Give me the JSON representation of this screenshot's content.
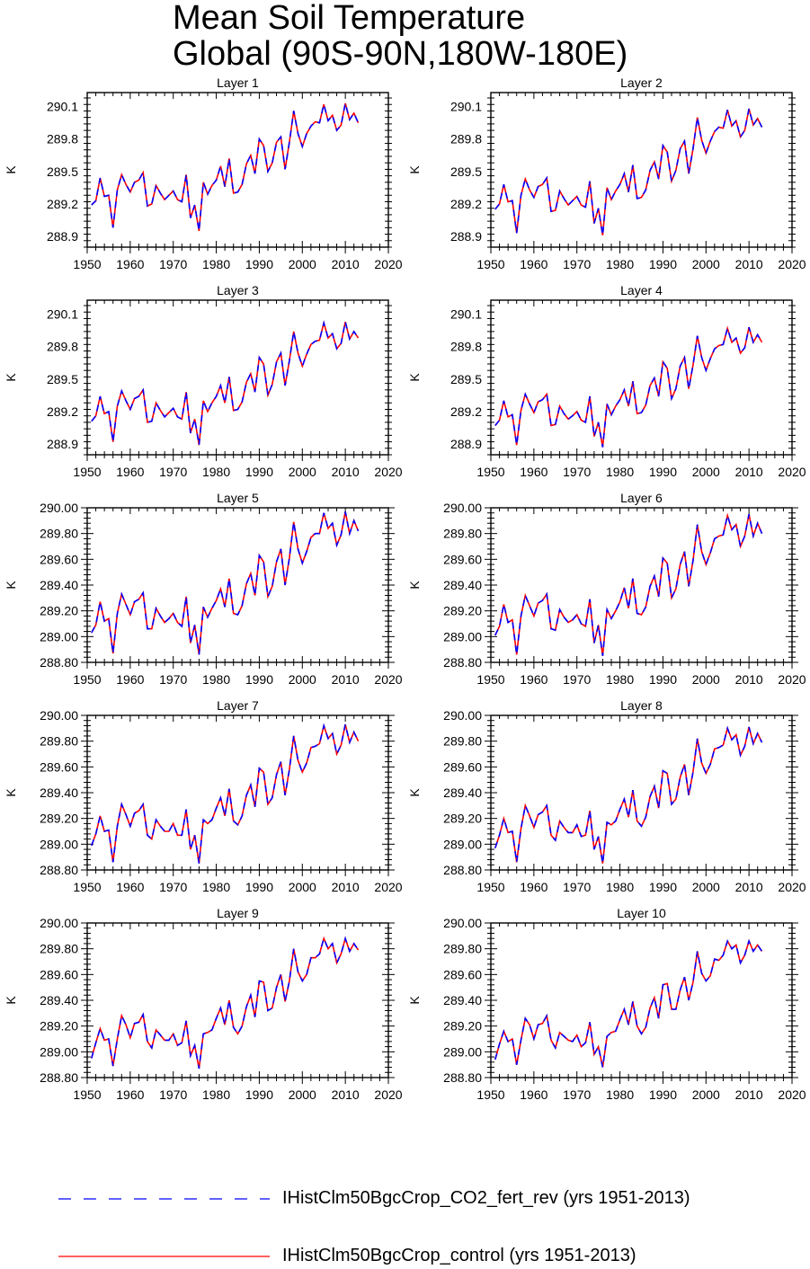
{
  "title": {
    "line1": "Mean Soil Temperature",
    "line2": "Global (90S-90N,180W-180E)"
  },
  "legend": [
    {
      "label": "IHistClm50BgcCrop_CO2_fert_rev (yrs 1951-2013)",
      "color": "#0000ff",
      "style": "dashed"
    },
    {
      "label": "IHistClm50BgcCrop_control (yrs 1951-2013)",
      "color": "#ff0000",
      "style": "solid"
    }
  ],
  "colors": {
    "rev": "#0000ff",
    "control": "#ff0000"
  },
  "chart_data": [
    {
      "type": "line",
      "title": "Layer 1",
      "ylabel": "K",
      "xlim": [
        1950,
        2020
      ],
      "ylim": [
        288.8,
        290.23
      ],
      "xticks": [
        "1950",
        "1960",
        "1970",
        "1980",
        "1990",
        "2000",
        "2010",
        "2020"
      ],
      "yticks": [
        "288.9",
        "289.2",
        "289.5",
        "289.8",
        "290.1"
      ],
      "x_start": 1951,
      "values": [
        289.19,
        289.23,
        289.44,
        289.27,
        289.28,
        288.98,
        289.33,
        289.47,
        289.38,
        289.31,
        289.4,
        289.42,
        289.49,
        289.18,
        289.2,
        289.37,
        289.3,
        289.24,
        289.28,
        289.32,
        289.24,
        289.22,
        289.47,
        289.07,
        289.19,
        288.95,
        289.4,
        289.29,
        289.37,
        289.42,
        289.55,
        289.36,
        289.62,
        289.3,
        289.31,
        289.38,
        289.57,
        289.65,
        289.48,
        289.8,
        289.74,
        289.5,
        289.58,
        289.77,
        289.82,
        289.52,
        289.77,
        290.06,
        289.85,
        289.73,
        289.85,
        289.92,
        289.96,
        289.95,
        290.12,
        289.97,
        290.02,
        289.88,
        289.93,
        290.13,
        289.98,
        290.04,
        289.95
      ]
    },
    {
      "type": "line",
      "title": "Layer 2",
      "ylabel": "K",
      "xlim": [
        1950,
        2020
      ],
      "ylim": [
        288.8,
        290.23
      ],
      "xticks": [
        "1950",
        "1960",
        "1970",
        "1980",
        "1990",
        "2000",
        "2010",
        "2020"
      ],
      "yticks": [
        "288.9",
        "289.2",
        "289.5",
        "289.8",
        "290.1"
      ],
      "x_start": 1951,
      "values": [
        289.15,
        289.2,
        289.38,
        289.22,
        289.23,
        288.93,
        289.28,
        289.43,
        289.33,
        289.26,
        289.36,
        289.38,
        289.44,
        289.13,
        289.14,
        289.32,
        289.25,
        289.19,
        289.23,
        289.27,
        289.19,
        289.17,
        289.41,
        289.02,
        289.16,
        288.91,
        289.35,
        289.24,
        289.32,
        289.38,
        289.48,
        289.31,
        289.56,
        289.25,
        289.26,
        289.33,
        289.51,
        289.59,
        289.43,
        289.74,
        289.68,
        289.41,
        289.51,
        289.71,
        289.78,
        289.48,
        289.71,
        290.0,
        289.79,
        289.67,
        289.78,
        289.87,
        289.91,
        289.9,
        290.07,
        289.92,
        289.97,
        289.82,
        289.88,
        290.08,
        289.93,
        289.99,
        289.91
      ]
    },
    {
      "type": "line",
      "title": "Layer 3",
      "ylabel": "K",
      "xlim": [
        1950,
        2020
      ],
      "ylim": [
        288.8,
        290.23
      ],
      "xticks": [
        "1950",
        "1960",
        "1970",
        "1980",
        "1990",
        "2000",
        "2010",
        "2020"
      ],
      "yticks": [
        "288.9",
        "289.2",
        "289.5",
        "289.8",
        "290.1"
      ],
      "x_start": 1951,
      "values": [
        289.11,
        289.16,
        289.34,
        289.18,
        289.2,
        288.92,
        289.25,
        289.39,
        289.3,
        289.22,
        289.32,
        289.34,
        289.4,
        289.1,
        289.11,
        289.28,
        289.21,
        289.15,
        289.19,
        289.23,
        289.15,
        289.13,
        289.38,
        289.0,
        289.13,
        288.89,
        289.3,
        289.2,
        289.28,
        289.34,
        289.44,
        289.28,
        289.52,
        289.21,
        289.22,
        289.29,
        289.47,
        289.55,
        289.38,
        289.7,
        289.64,
        289.35,
        289.45,
        289.66,
        289.74,
        289.44,
        289.67,
        289.94,
        289.74,
        289.62,
        289.73,
        289.82,
        289.85,
        289.86,
        290.02,
        289.88,
        289.92,
        289.78,
        289.83,
        290.03,
        289.87,
        289.94,
        289.88
      ]
    },
    {
      "type": "line",
      "title": "Layer 4",
      "ylabel": "K",
      "xlim": [
        1950,
        2020
      ],
      "ylim": [
        288.8,
        290.23
      ],
      "xticks": [
        "1950",
        "1960",
        "1970",
        "1980",
        "1990",
        "2000",
        "2010",
        "2020"
      ],
      "yticks": [
        "288.9",
        "289.2",
        "289.5",
        "289.8",
        "290.1"
      ],
      "x_start": 1951,
      "values": [
        289.07,
        289.12,
        289.3,
        289.15,
        289.17,
        288.89,
        289.21,
        289.36,
        289.27,
        289.19,
        289.29,
        289.31,
        289.36,
        289.07,
        289.08,
        289.25,
        289.18,
        289.13,
        289.16,
        289.2,
        289.12,
        289.1,
        289.34,
        288.97,
        289.1,
        288.87,
        289.27,
        289.17,
        289.25,
        289.31,
        289.4,
        289.25,
        289.48,
        289.18,
        289.19,
        289.26,
        289.44,
        289.51,
        289.34,
        289.66,
        289.6,
        289.32,
        289.41,
        289.62,
        289.7,
        289.41,
        289.63,
        289.9,
        289.7,
        289.58,
        289.69,
        289.78,
        289.81,
        289.82,
        289.97,
        289.84,
        289.88,
        289.74,
        289.79,
        289.98,
        289.84,
        289.91,
        289.84
      ]
    },
    {
      "type": "line",
      "title": "Layer 5",
      "ylabel": "K",
      "xlim": [
        1950,
        2020
      ],
      "ylim": [
        288.8,
        290.0
      ],
      "xticks": [
        "1950",
        "1960",
        "1970",
        "1980",
        "1990",
        "2000",
        "2010",
        "2020"
      ],
      "yticks": [
        "288.80",
        "289.00",
        "289.20",
        "289.40",
        "289.60",
        "289.80",
        "290.00"
      ],
      "x_start": 1951,
      "values": [
        289.03,
        289.09,
        289.27,
        289.12,
        289.14,
        288.87,
        289.18,
        289.33,
        289.25,
        289.17,
        289.27,
        289.29,
        289.34,
        289.06,
        289.06,
        289.22,
        289.16,
        289.11,
        289.14,
        289.18,
        289.11,
        289.08,
        289.31,
        288.95,
        289.09,
        288.86,
        289.23,
        289.15,
        289.22,
        289.28,
        289.37,
        289.23,
        289.45,
        289.18,
        289.17,
        289.24,
        289.41,
        289.49,
        289.32,
        289.63,
        289.58,
        289.31,
        289.39,
        289.58,
        289.68,
        289.4,
        289.61,
        289.89,
        289.68,
        289.57,
        289.66,
        289.77,
        289.8,
        289.8,
        289.96,
        289.84,
        289.88,
        289.71,
        289.79,
        289.97,
        289.8,
        289.9,
        289.82
      ]
    },
    {
      "type": "line",
      "title": "Layer 6",
      "ylabel": "K",
      "xlim": [
        1950,
        2020
      ],
      "ylim": [
        288.8,
        290.0
      ],
      "xticks": [
        "1950",
        "1960",
        "1970",
        "1980",
        "1990",
        "2000",
        "2010",
        "2020"
      ],
      "yticks": [
        "288.80",
        "289.00",
        "289.20",
        "289.40",
        "289.60",
        "289.80",
        "290.00"
      ],
      "x_start": 1951,
      "values": [
        289.01,
        289.08,
        289.25,
        289.11,
        289.13,
        288.86,
        289.16,
        289.32,
        289.24,
        289.16,
        289.26,
        289.28,
        289.33,
        289.06,
        289.05,
        289.21,
        289.15,
        289.11,
        289.13,
        289.17,
        289.1,
        289.08,
        289.29,
        288.95,
        289.09,
        288.85,
        289.21,
        289.14,
        289.2,
        289.27,
        289.38,
        289.22,
        289.45,
        289.18,
        289.17,
        289.23,
        289.39,
        289.47,
        289.31,
        289.61,
        289.57,
        289.3,
        289.37,
        289.56,
        289.66,
        289.39,
        289.59,
        289.87,
        289.66,
        289.56,
        289.65,
        289.76,
        289.78,
        289.79,
        289.94,
        289.83,
        289.87,
        289.7,
        289.78,
        289.95,
        289.78,
        289.88,
        289.8
      ]
    },
    {
      "type": "line",
      "title": "Layer 7",
      "ylabel": "K",
      "xlim": [
        1950,
        2020
      ],
      "ylim": [
        288.8,
        290.0
      ],
      "xticks": [
        "1950",
        "1960",
        "1970",
        "1980",
        "1990",
        "2000",
        "2010",
        "2020"
      ],
      "yticks": [
        "288.80",
        "289.00",
        "289.20",
        "289.40",
        "289.60",
        "289.80",
        "290.00"
      ],
      "x_start": 1951,
      "values": [
        288.99,
        289.08,
        289.22,
        289.1,
        289.11,
        288.86,
        289.14,
        289.31,
        289.23,
        289.14,
        289.24,
        289.26,
        289.31,
        289.07,
        289.04,
        289.19,
        289.14,
        289.1,
        289.1,
        289.16,
        289.07,
        289.07,
        289.27,
        288.96,
        289.07,
        288.85,
        289.19,
        289.16,
        289.19,
        289.28,
        289.36,
        289.22,
        289.43,
        289.18,
        289.15,
        289.22,
        289.38,
        289.46,
        289.29,
        289.59,
        289.56,
        289.31,
        289.36,
        289.54,
        289.64,
        289.38,
        289.58,
        289.84,
        289.65,
        289.56,
        289.63,
        289.75,
        289.76,
        289.78,
        289.92,
        289.82,
        289.86,
        289.7,
        289.77,
        289.93,
        289.79,
        289.87,
        289.8
      ]
    },
    {
      "type": "line",
      "title": "Layer 8",
      "ylabel": "K",
      "xlim": [
        1950,
        2020
      ],
      "ylim": [
        288.8,
        290.0
      ],
      "xticks": [
        "1950",
        "1960",
        "1970",
        "1980",
        "1990",
        "2000",
        "2010",
        "2020"
      ],
      "yticks": [
        "288.80",
        "289.00",
        "289.20",
        "289.40",
        "289.60",
        "289.80",
        "290.00"
      ],
      "x_start": 1951,
      "values": [
        288.97,
        289.07,
        289.2,
        289.09,
        289.1,
        288.86,
        289.12,
        289.3,
        289.22,
        289.13,
        289.23,
        289.25,
        289.3,
        289.07,
        289.03,
        289.18,
        289.13,
        289.09,
        289.09,
        289.15,
        289.06,
        289.07,
        289.26,
        288.96,
        289.06,
        288.85,
        289.17,
        289.15,
        289.18,
        289.27,
        289.35,
        289.21,
        289.42,
        289.18,
        289.14,
        289.21,
        289.37,
        289.45,
        289.28,
        289.57,
        289.55,
        289.31,
        289.35,
        289.52,
        289.62,
        289.38,
        289.56,
        289.82,
        289.63,
        289.55,
        289.62,
        289.74,
        289.75,
        289.77,
        289.9,
        289.81,
        289.85,
        289.69,
        289.76,
        289.91,
        289.78,
        289.86,
        289.79
      ]
    },
    {
      "type": "line",
      "title": "Layer 9",
      "ylabel": "K",
      "xlim": [
        1950,
        2020
      ],
      "ylim": [
        288.8,
        290.0
      ],
      "xticks": [
        "1950",
        "1960",
        "1970",
        "1980",
        "1990",
        "2000",
        "2010",
        "2020"
      ],
      "yticks": [
        "288.80",
        "289.00",
        "289.20",
        "289.40",
        "289.60",
        "289.80",
        "290.00"
      ],
      "x_start": 1951,
      "values": [
        288.95,
        289.07,
        289.18,
        289.09,
        289.1,
        288.89,
        289.1,
        289.28,
        289.21,
        289.11,
        289.22,
        289.23,
        289.29,
        289.08,
        289.03,
        289.17,
        289.13,
        289.09,
        289.09,
        289.14,
        289.05,
        289.07,
        289.24,
        288.97,
        289.05,
        288.87,
        289.14,
        289.15,
        289.17,
        289.26,
        289.34,
        289.21,
        289.4,
        289.19,
        289.14,
        289.2,
        289.35,
        289.44,
        289.27,
        289.55,
        289.54,
        289.32,
        289.34,
        289.5,
        289.6,
        289.39,
        289.55,
        289.8,
        289.62,
        289.55,
        289.6,
        289.73,
        289.73,
        289.76,
        289.88,
        289.8,
        289.84,
        289.69,
        289.76,
        289.88,
        289.78,
        289.84,
        289.79
      ]
    },
    {
      "type": "line",
      "title": "Layer 10",
      "ylabel": "K",
      "xlim": [
        1950,
        2020
      ],
      "ylim": [
        288.8,
        290.0
      ],
      "xticks": [
        "1950",
        "1960",
        "1970",
        "1980",
        "1990",
        "2000",
        "2010",
        "2020"
      ],
      "yticks": [
        "288.80",
        "289.00",
        "289.20",
        "289.40",
        "289.60",
        "289.80",
        "290.00"
      ],
      "x_start": 1951,
      "values": [
        288.94,
        289.06,
        289.16,
        289.08,
        289.1,
        288.9,
        289.09,
        289.26,
        289.21,
        289.1,
        289.21,
        289.22,
        289.28,
        289.09,
        289.03,
        289.15,
        289.12,
        289.09,
        289.08,
        289.13,
        289.04,
        289.07,
        289.23,
        288.98,
        289.04,
        288.88,
        289.12,
        289.15,
        289.16,
        289.25,
        289.33,
        289.21,
        289.39,
        289.2,
        289.14,
        289.19,
        289.34,
        289.42,
        289.26,
        289.52,
        289.53,
        289.33,
        289.33,
        289.48,
        289.58,
        289.4,
        289.54,
        289.78,
        289.61,
        289.55,
        289.59,
        289.72,
        289.71,
        289.75,
        289.86,
        289.8,
        289.83,
        289.69,
        289.75,
        289.86,
        289.78,
        289.83,
        289.78
      ]
    }
  ]
}
